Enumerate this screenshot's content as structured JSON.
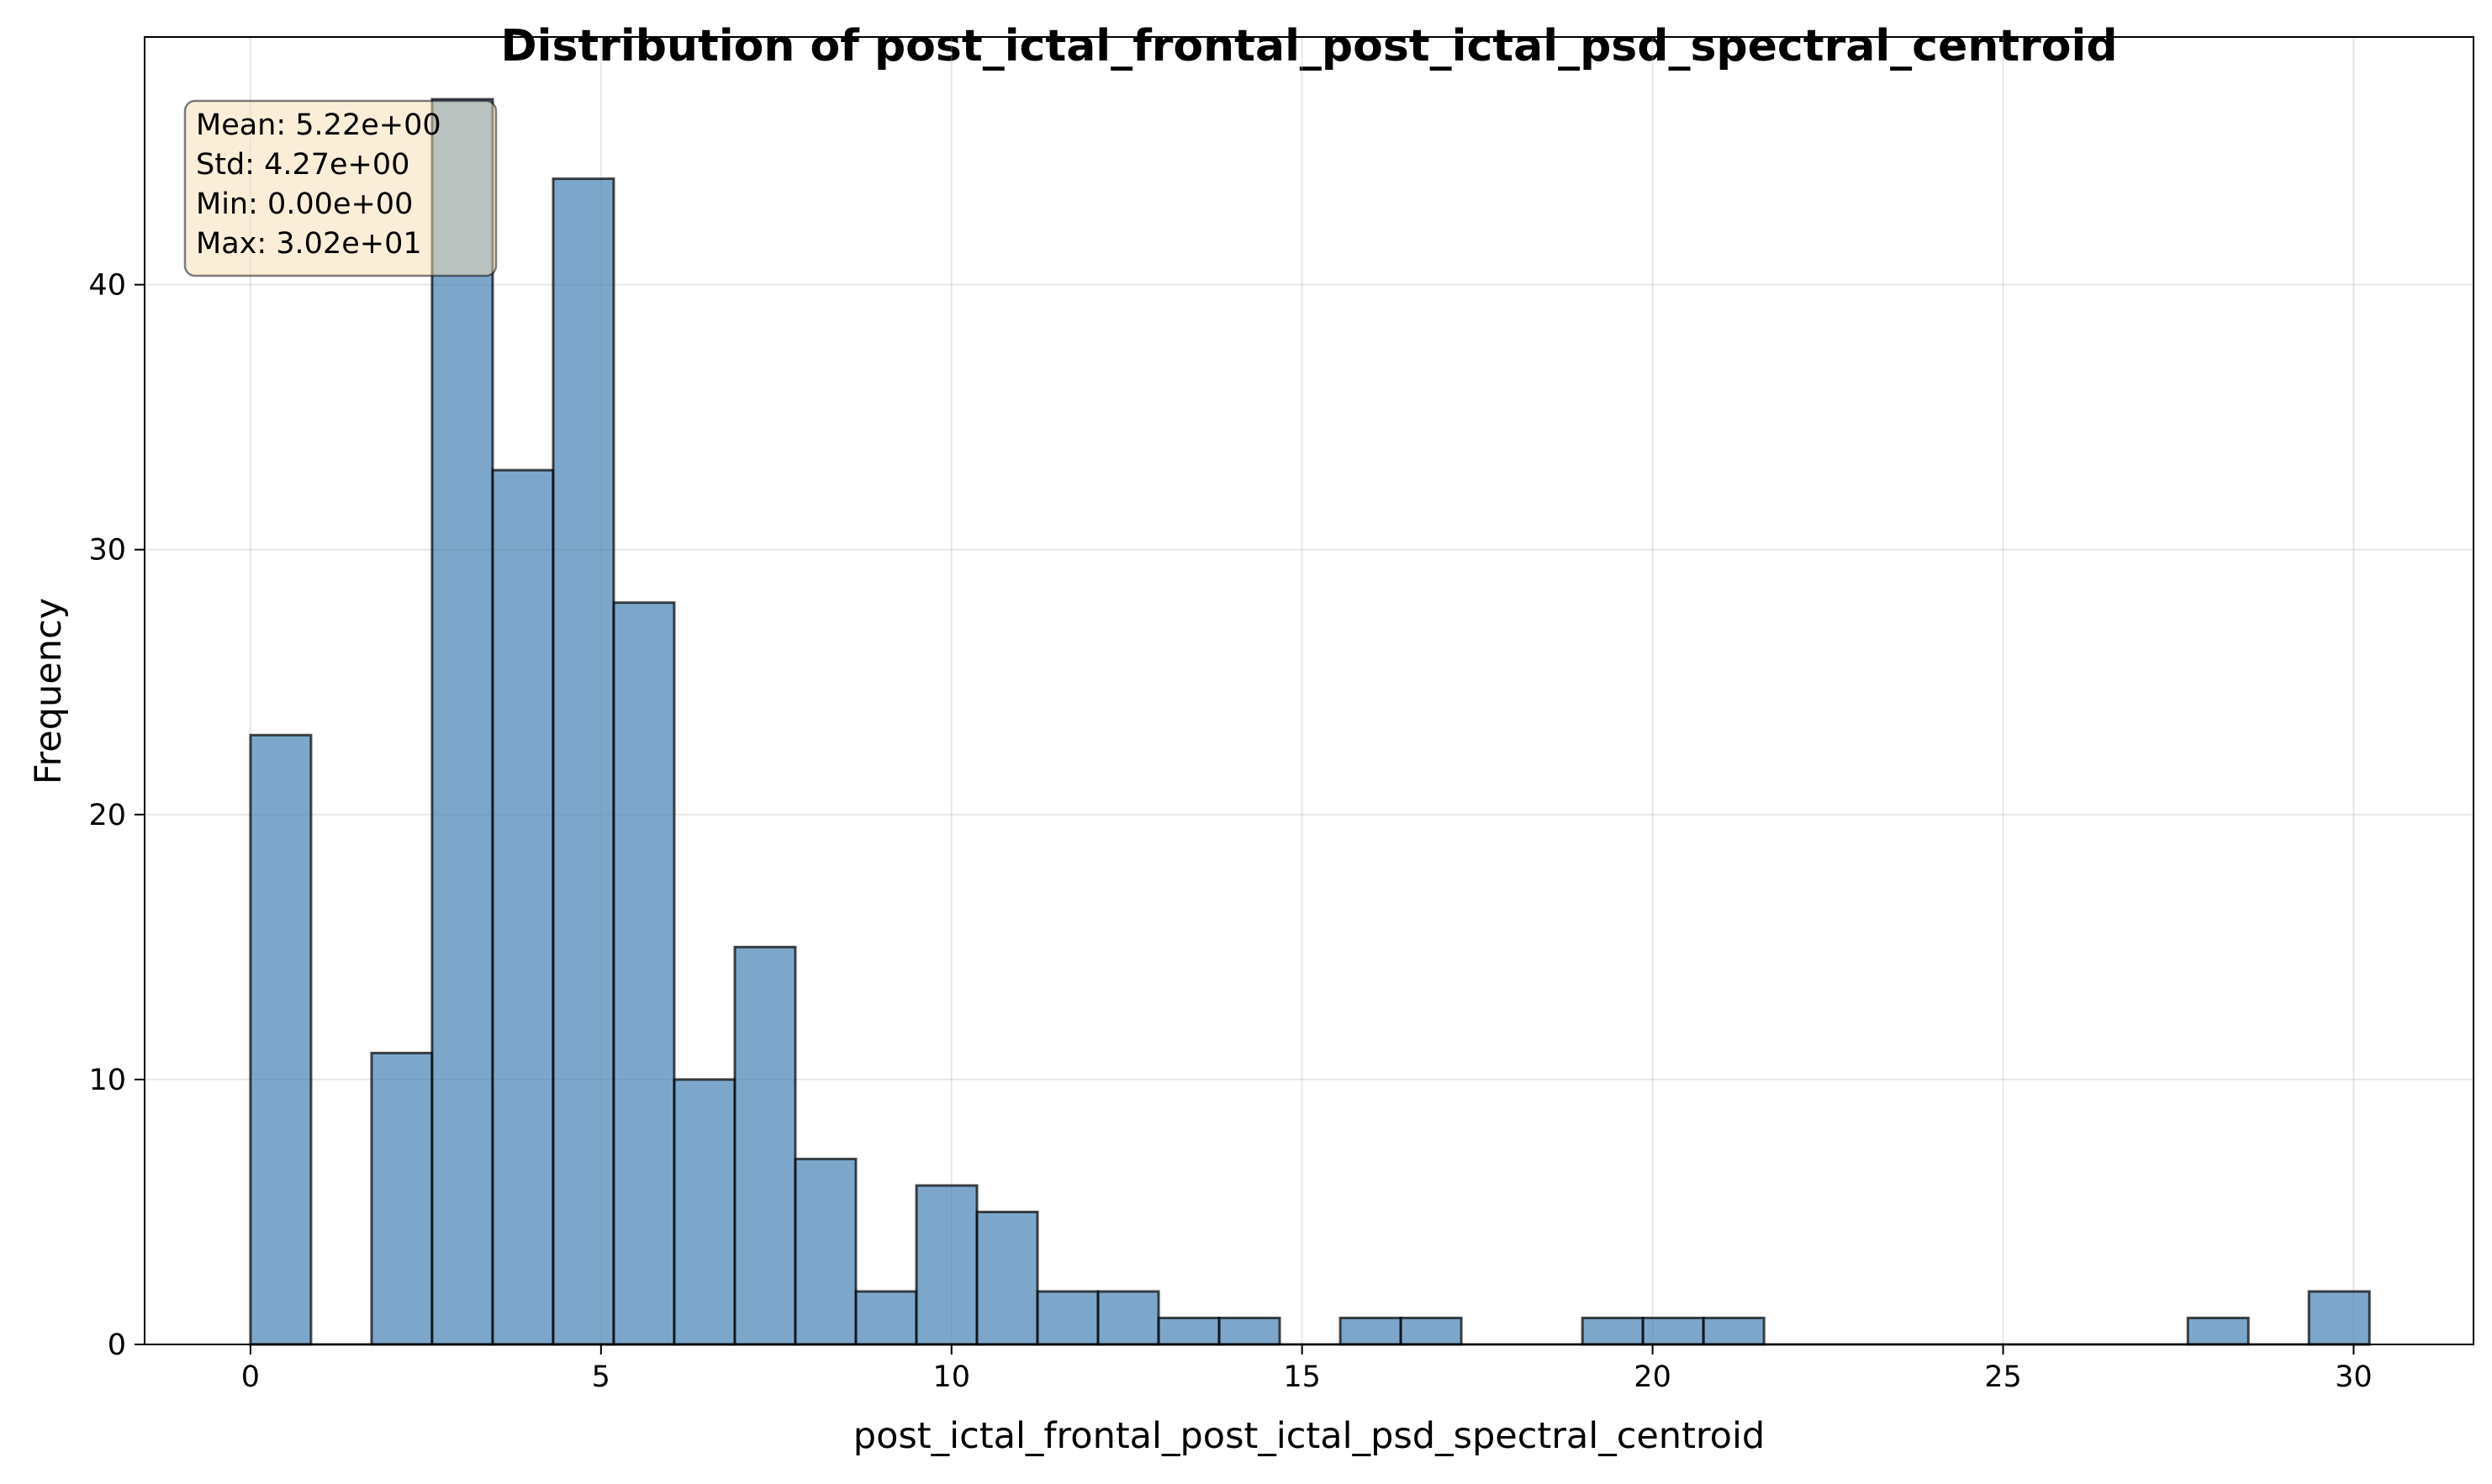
{
  "chart_data": {
    "type": "bar",
    "title": "Distribution of post_ictal_frontal_post_ictal_psd_spectral_centroid",
    "xlabel": "post_ictal_frontal_post_ictal_psd_spectral_centroid",
    "ylabel": "Frequency",
    "xlim": [
      -1.51,
      31.71
    ],
    "ylim": [
      0,
      49.35
    ],
    "xticks": [
      0,
      5,
      10,
      15,
      20,
      25,
      30
    ],
    "yticks": [
      0,
      10,
      20,
      30,
      40
    ],
    "grid": true,
    "bin_start": 0,
    "bin_width": 0.8636,
    "values": [
      23,
      0,
      11,
      47,
      33,
      44,
      28,
      10,
      15,
      7,
      2,
      6,
      5,
      2,
      2,
      1,
      1,
      0,
      1,
      1,
      0,
      0,
      1,
      1,
      1,
      0,
      0,
      0,
      0,
      0,
      0,
      0,
      1,
      0,
      2
    ],
    "bar_color": "#4682b4",
    "edge_color": "#000000",
    "stats_box": {
      "position": "top-left",
      "lines": [
        "Mean: 5.22e+00",
        "Std: 4.27e+00",
        "Min: 0.00e+00",
        "Max: 3.02e+01"
      ]
    }
  }
}
